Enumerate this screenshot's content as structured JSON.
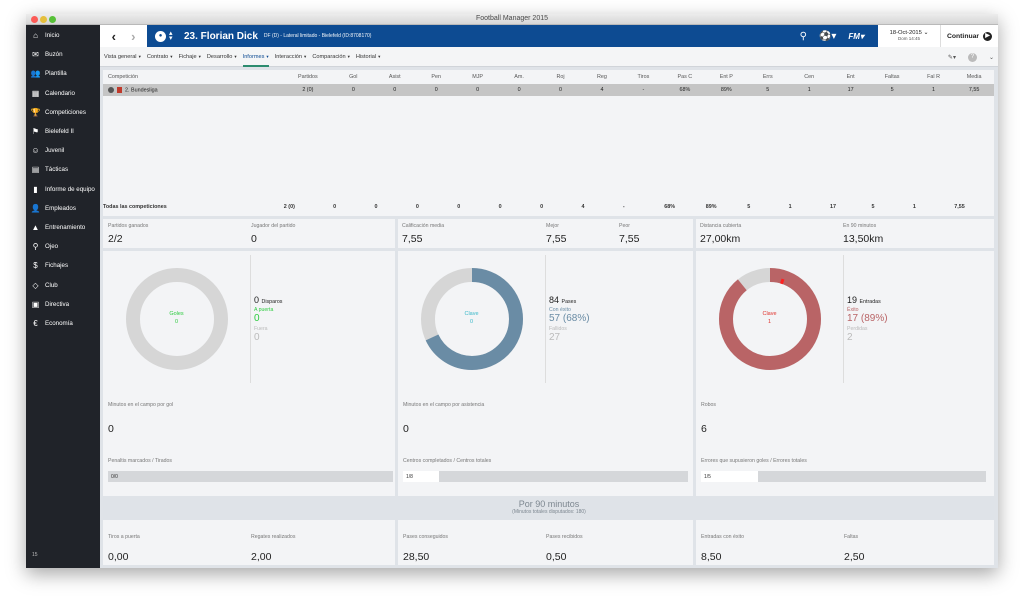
{
  "window": {
    "title": "Football Manager 2015"
  },
  "sidebar": {
    "items": [
      {
        "label": "Inicio",
        "icon": "home-icon",
        "glyph": "⌂"
      },
      {
        "label": "Buzón",
        "icon": "inbox-icon",
        "glyph": "✉"
      },
      {
        "label": "Plantilla",
        "icon": "squad-icon",
        "glyph": "👥"
      },
      {
        "label": "Calendario",
        "icon": "calendar-icon",
        "glyph": "▦"
      },
      {
        "label": "Competiciones",
        "icon": "trophy-icon",
        "glyph": "🏆"
      },
      {
        "label": "Bielefeld II",
        "icon": "team-icon",
        "glyph": "⚑"
      },
      {
        "label": "Juvenil",
        "icon": "youth-icon",
        "glyph": "☺"
      },
      {
        "label": "Tácticas",
        "icon": "tactics-icon",
        "glyph": "▤"
      },
      {
        "label": "Informe de equipo",
        "icon": "report-icon",
        "glyph": "▮"
      },
      {
        "label": "Empleados",
        "icon": "staff-icon",
        "glyph": "👤"
      },
      {
        "label": "Entrenamiento",
        "icon": "training-icon",
        "glyph": "▲"
      },
      {
        "label": "Ojeo",
        "icon": "scout-icon",
        "glyph": "⚲"
      },
      {
        "label": "Fichajes",
        "icon": "transfers-icon",
        "glyph": "$"
      },
      {
        "label": "Club",
        "icon": "club-icon",
        "glyph": "◇"
      },
      {
        "label": "Directiva",
        "icon": "board-icon",
        "glyph": "▣"
      },
      {
        "label": "Economía",
        "icon": "finance-icon",
        "glyph": "€"
      }
    ],
    "footer": "15"
  },
  "header": {
    "player_name": "23. Florian Dick",
    "player_detail": "DF (D) - Lateral limitado - Bielefeld (ID:8708170)",
    "date": "18-Oct-2015",
    "time": "Dom 14:45",
    "continue_label": "Continuar",
    "colors": {
      "header_bg": "#0d4b92"
    }
  },
  "subnav": {
    "tabs": [
      {
        "label": "Vista general",
        "active": false
      },
      {
        "label": "Contrato",
        "active": false
      },
      {
        "label": "Fichaje",
        "active": false
      },
      {
        "label": "Desarrollo",
        "active": false
      },
      {
        "label": "Informes",
        "active": true
      },
      {
        "label": "Interacción",
        "active": false
      },
      {
        "label": "Comparación",
        "active": false
      },
      {
        "label": "Historial",
        "active": false
      }
    ]
  },
  "stats_table": {
    "columns": [
      "Competición",
      "Partidos",
      "Gol",
      "Asist",
      "Pen",
      "MJP",
      "Am.",
      "Roj",
      "Reg",
      "Tiros",
      "Pas C",
      "Ent P",
      "Errs",
      "Cen",
      "Ent",
      "Faltas",
      "Fal R",
      "Media"
    ],
    "rows": [
      [
        "2. Bundesliga",
        "2 (0)",
        "0",
        "0",
        "0",
        "0",
        "0",
        "0",
        "4",
        "-",
        "68%",
        "89%",
        "5",
        "1",
        "17",
        "5",
        "1",
        "7,55"
      ]
    ],
    "totals": [
      "Todas las competiciones",
      "2 (0)",
      "0",
      "0",
      "0",
      "0",
      "0",
      "0",
      "4",
      "-",
      "68%",
      "89%",
      "5",
      "1",
      "17",
      "5",
      "1",
      "7,55"
    ]
  },
  "summary": {
    "partidos_ganados": {
      "label": "Partidos ganados",
      "value": "2/2"
    },
    "jugador_partido": {
      "label": "Jugador del partido",
      "value": "0"
    },
    "calificacion": {
      "label": "Calificación media",
      "value": "7,55"
    },
    "mejor": {
      "label": "Mejor",
      "value": "7,55"
    },
    "peor": {
      "label": "Peor",
      "value": "7,55"
    },
    "distancia": {
      "label": "Distancia cubierta",
      "value": "27,00km"
    },
    "en90": {
      "label": "En 90 minutos",
      "value": "13,50km"
    }
  },
  "donuts": [
    {
      "center_label": "Goles",
      "center_value": "0",
      "center_color": "#2ecc40",
      "fraction": 0,
      "ring_color": "#d6d6d6",
      "fill_color": "#d6d6d6",
      "marker": false,
      "main_value": "0",
      "main_label": "Disparos",
      "sub_label": "A puerta",
      "sub_value": "0",
      "sub_color": "#2ecc40",
      "minor_label": "Fuera",
      "minor_value": "0",
      "mid_label": "Minutos en el campo por gol",
      "mid_value": "0",
      "bar_label": "Penaltis marcados / Tirados",
      "bar_text": "0/0",
      "bar_fraction": 0
    },
    {
      "center_label": "Clave",
      "center_value": "0",
      "center_color": "#39b8c9",
      "fraction": 0.68,
      "ring_color": "#d6d6d6",
      "fill_color": "#6a8ca5",
      "marker": false,
      "main_value": "84",
      "main_label": "Pases",
      "sub_label": "Con éxito",
      "sub_value": "57 (68%)",
      "sub_color": "#6a8ca5",
      "minor_label": "Fallidos",
      "minor_value": "27",
      "mid_label": "Minutos en el campo por asistencia",
      "mid_value": "0",
      "bar_label": "Centros completados / Centros totales",
      "bar_text": "1/8",
      "bar_fraction": 0.125
    },
    {
      "center_label": "Clave",
      "center_value": "1",
      "center_color": "#e0302a",
      "fraction": 0.89,
      "ring_color": "#d6d6d6",
      "fill_color": "#b96466",
      "marker": true,
      "main_value": "19",
      "main_label": "Entradas",
      "sub_label": "Éxito",
      "sub_value": "17 (89%)",
      "sub_color": "#b96466",
      "minor_label": "Perdidas",
      "minor_value": "2",
      "mid_label": "Robos",
      "mid_value": "6",
      "bar_label": "Errores que supusieron goles / Errores totales",
      "bar_text": "1/5",
      "bar_fraction": 0.2
    }
  ],
  "per90": {
    "title": "Por 90 minutos",
    "subtitle": "(Minutos totales disputados: 180)",
    "cards": [
      {
        "a_label": "Tiros a puerta",
        "a_value": "0,00",
        "b_label": "Regates realizados",
        "b_value": "2,00"
      },
      {
        "a_label": "Pases conseguidos",
        "a_value": "28,50",
        "b_label": "Pases recibidos",
        "b_value": "0,50"
      },
      {
        "a_label": "Entradas con éxito",
        "a_value": "8,50",
        "b_label": "Faltas",
        "b_value": "2,50"
      }
    ]
  }
}
